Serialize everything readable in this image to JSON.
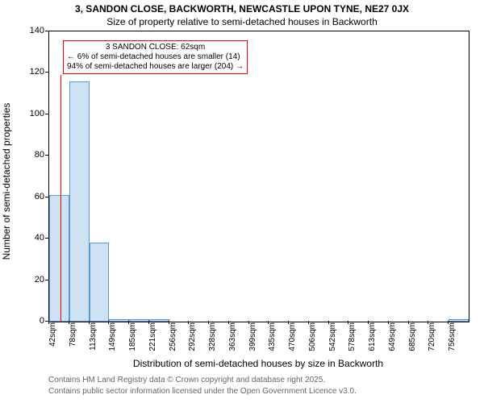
{
  "title_line1": "3, SANDON CLOSE, BACKWORTH, NEWCASTLE UPON TYNE, NE27 0JX",
  "title_line2": "Size of property relative to semi-detached houses in Backworth",
  "ylabel": "Number of semi-detached properties",
  "xlabel": "Distribution of semi-detached houses by size in Backworth",
  "footer_line1": "Contains HM Land Registry data © Crown copyright and database right 2025.",
  "footer_line2": "Contains public sector information licensed under the Open Government Licence v3.0.",
  "chart": {
    "type": "histogram",
    "x_categories": [
      "42sqm",
      "78sqm",
      "113sqm",
      "149sqm",
      "185sqm",
      "221sqm",
      "256sqm",
      "292sqm",
      "328sqm",
      "363sqm",
      "399sqm",
      "435sqm",
      "470sqm",
      "506sqm",
      "542sqm",
      "578sqm",
      "613sqm",
      "649sqm",
      "685sqm",
      "720sqm",
      "756sqm"
    ],
    "values": [
      61,
      116,
      38,
      1,
      1,
      1,
      0,
      0,
      0,
      0,
      0,
      0,
      0,
      0,
      0,
      0,
      0,
      0,
      0,
      0,
      1
    ],
    "bar_fill_color": "#cfe2f3",
    "bar_border_color": "#5b9bd5",
    "ylim": [
      0,
      140
    ],
    "ytick_step": 20,
    "yticks": [
      0,
      20,
      40,
      60,
      80,
      100,
      120,
      140
    ],
    "label_fontsize": 12,
    "tick_fontsize": 11,
    "background_color": "#ffffff",
    "reference_line_color": "#ff0000",
    "reference_line_x_index": 0.55,
    "annotation_box": {
      "line1": "3 SANDON CLOSE: 62sqm",
      "line2": "← 6% of semi-detached houses are smaller (14)",
      "line3": "94% of semi-detached houses are larger (204) →",
      "border_color": "#ff0000"
    }
  }
}
